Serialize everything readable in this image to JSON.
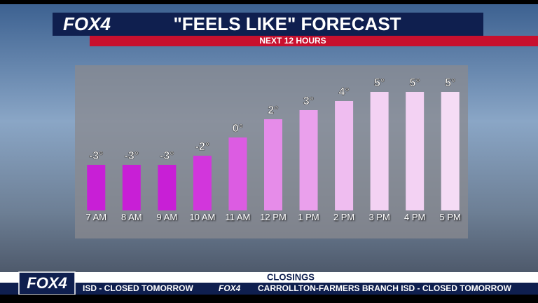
{
  "chart_data": {
    "type": "bar",
    "title": "\"FEELS LIKE\" FORECAST",
    "subtitle": "NEXT 12 HOURS",
    "categories": [
      "7 AM",
      "8 AM",
      "9 AM",
      "10 AM",
      "11 AM",
      "12 PM",
      "1 PM",
      "2 PM",
      "3 PM",
      "4 PM",
      "5 PM"
    ],
    "values": [
      -3,
      -3,
      -3,
      -2,
      0,
      2,
      3,
      4,
      5,
      5,
      5
    ],
    "value_labels": [
      "-3°",
      "-3°",
      "-3°",
      "-2°",
      "0°",
      "2°",
      "3°",
      "4°",
      "5°",
      "5°",
      "5°"
    ],
    "colors": [
      "#c81fd6",
      "#c81fd6",
      "#c81fd6",
      "#d236dc",
      "#dc5ce2",
      "#e68ce9",
      "#eaa0ec",
      "#efbdf0",
      "#f3d2f3",
      "#f3d2f3",
      "#f5dcf5"
    ],
    "ylim": [
      -8,
      6
    ]
  },
  "header": {
    "logo": "FOX4"
  },
  "ticker": {
    "heading": "CLOSINGS",
    "logo": "FOX4",
    "items": [
      "ISD - CLOSED TOMORROW",
      "CARROLLTON-FARMERS BRANCH ISD - CLOSED TOMORROW"
    ]
  }
}
